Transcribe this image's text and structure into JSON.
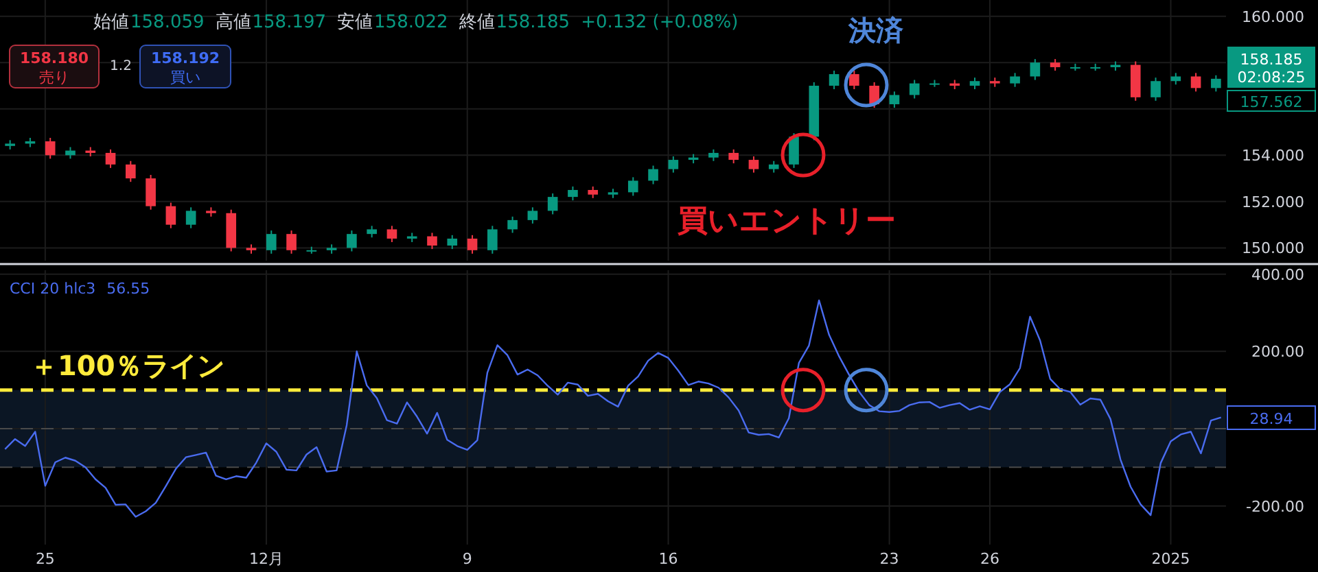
{
  "chart_data": [
    {
      "type": "candlestick",
      "categories": [
        null,
        null,
        null,
        null,
        null,
        null,
        null,
        null,
        null,
        null,
        null,
        null,
        null,
        null,
        null,
        null,
        null,
        null,
        null,
        null,
        null,
        null,
        null,
        null,
        null,
        null,
        null,
        null,
        null,
        null,
        null,
        null,
        null,
        null,
        null,
        null,
        null,
        null,
        null,
        null,
        null,
        null,
        null,
        null,
        null,
        null,
        null,
        null,
        null,
        null,
        null,
        null,
        null,
        null,
        null,
        null,
        null,
        null,
        null,
        null,
        null
      ],
      "ohlc": [
        [
          154.4,
          154.65,
          154.25,
          154.5
        ],
        [
          154.5,
          154.75,
          154.35,
          154.6
        ],
        [
          154.6,
          154.75,
          153.85,
          154.0
        ],
        [
          154.0,
          154.35,
          153.85,
          154.2
        ],
        [
          154.2,
          154.35,
          153.95,
          154.1
        ],
        [
          154.1,
          154.25,
          153.45,
          153.6
        ],
        [
          153.6,
          153.75,
          152.85,
          153.0
        ],
        [
          153.0,
          153.15,
          151.65,
          151.8
        ],
        [
          151.8,
          151.95,
          150.85,
          151.0
        ],
        [
          151.0,
          151.75,
          150.85,
          151.6
        ],
        [
          151.6,
          151.75,
          151.35,
          151.5
        ],
        [
          151.5,
          151.65,
          149.85,
          150.0
        ],
        [
          150.0,
          150.15,
          149.75,
          149.9
        ],
        [
          149.9,
          150.75,
          149.75,
          150.6
        ],
        [
          150.6,
          150.75,
          149.75,
          149.9
        ],
        [
          149.9,
          150.05,
          149.75,
          149.9
        ],
        [
          149.9,
          150.15,
          149.75,
          150.0
        ],
        [
          150.0,
          150.75,
          149.85,
          150.6
        ],
        [
          150.6,
          150.95,
          150.45,
          150.8
        ],
        [
          150.8,
          150.95,
          150.25,
          150.4
        ],
        [
          150.4,
          150.65,
          150.25,
          150.5
        ],
        [
          150.5,
          150.65,
          149.95,
          150.1
        ],
        [
          150.1,
          150.55,
          149.95,
          150.4
        ],
        [
          150.4,
          150.55,
          149.75,
          149.9
        ],
        [
          149.9,
          150.95,
          149.75,
          150.8
        ],
        [
          150.8,
          151.35,
          150.65,
          151.2
        ],
        [
          151.2,
          151.75,
          151.05,
          151.6
        ],
        [
          151.6,
          152.35,
          151.45,
          152.2
        ],
        [
          152.2,
          152.65,
          152.05,
          152.5
        ],
        [
          152.5,
          152.65,
          152.15,
          152.3
        ],
        [
          152.3,
          152.55,
          152.15,
          152.4
        ],
        [
          152.4,
          153.05,
          152.25,
          152.9
        ],
        [
          152.9,
          153.55,
          152.75,
          153.4
        ],
        [
          153.4,
          153.95,
          153.25,
          153.8
        ],
        [
          153.8,
          154.05,
          153.65,
          153.9
        ],
        [
          153.9,
          154.25,
          153.75,
          154.1
        ],
        [
          154.1,
          154.25,
          153.65,
          153.8
        ],
        [
          153.8,
          153.95,
          153.25,
          153.4
        ],
        [
          153.4,
          153.75,
          153.25,
          153.6
        ],
        [
          153.6,
          154.95,
          153.45,
          154.8
        ],
        [
          154.8,
          157.15,
          154.65,
          157.0
        ],
        [
          157.0,
          157.65,
          156.85,
          157.5
        ],
        [
          157.5,
          157.65,
          156.85,
          157.0
        ],
        [
          157.0,
          157.15,
          156.05,
          156.2
        ],
        [
          156.2,
          156.75,
          156.05,
          156.6
        ],
        [
          156.6,
          157.25,
          156.45,
          157.1
        ],
        [
          157.1,
          157.25,
          156.95,
          157.1
        ],
        [
          157.1,
          157.25,
          156.85,
          157.0
        ],
        [
          157.0,
          157.35,
          156.85,
          157.2
        ],
        [
          157.2,
          157.35,
          156.95,
          157.1
        ],
        [
          157.1,
          157.55,
          156.95,
          157.4
        ],
        [
          157.4,
          158.15,
          157.25,
          158.0
        ],
        [
          158.0,
          158.15,
          157.65,
          157.8
        ],
        [
          157.8,
          157.95,
          157.65,
          157.8
        ],
        [
          157.8,
          157.95,
          157.65,
          157.8
        ],
        [
          157.8,
          158.05,
          157.65,
          157.9
        ],
        [
          157.9,
          158.05,
          156.35,
          156.5
        ],
        [
          156.5,
          157.35,
          156.35,
          157.2
        ],
        [
          157.2,
          157.55,
          157.05,
          157.4
        ],
        [
          157.4,
          157.55,
          156.75,
          156.9
        ],
        [
          156.9,
          157.45,
          156.75,
          157.3
        ]
      ],
      "ylim": [
        149.45,
        160.7
      ],
      "yticks": [
        {
          "value": 150,
          "label": "150.000"
        },
        {
          "value": 152,
          "label": "152.000"
        },
        {
          "value": 154,
          "label": "154.000"
        },
        {
          "value": 156,
          "label": null
        },
        {
          "value": 158,
          "label": null
        },
        {
          "value": 160,
          "label": "160.000"
        }
      ],
      "grid": true,
      "annotations": [
        "始値",
        "158.059",
        "高値",
        "158.197",
        "安値",
        "158.022",
        "終値",
        "158.185",
        "+0.132 (+0.08%)",
        "158.180",
        "売り",
        "1.2",
        "158.192",
        "買い",
        "158.185",
        "02:08:25",
        "157.562",
        "買いエントリー",
        "決済"
      ]
    },
    {
      "type": "line",
      "categories": [
        null,
        null,
        null,
        null,
        "25",
        null,
        null,
        null,
        null,
        null,
        null,
        null,
        null,
        null,
        null,
        null,
        null,
        null,
        null,
        null,
        null,
        null,
        null,
        null,
        null,
        null,
        "12月",
        null,
        null,
        null,
        null,
        null,
        null,
        null,
        null,
        null,
        null,
        null,
        null,
        null,
        null,
        null,
        null,
        null,
        null,
        null,
        "9",
        null,
        null,
        null,
        null,
        null,
        null,
        null,
        null,
        null,
        null,
        null,
        null,
        null,
        null,
        null,
        null,
        null,
        null,
        null,
        "16",
        null,
        null,
        null,
        null,
        null,
        null,
        null,
        null,
        null,
        null,
        null,
        null,
        null,
        null,
        null,
        null,
        null,
        null,
        null,
        null,
        null,
        "23",
        null,
        null,
        null,
        null,
        null,
        null,
        null,
        null,
        null,
        "26",
        null,
        null,
        null,
        null,
        null,
        null,
        null,
        null,
        null,
        null,
        null,
        null,
        null,
        null,
        null,
        null,
        null,
        "2025",
        null,
        null,
        null,
        null,
        null
      ],
      "series": [
        {
          "name": "CCI 20 hlc3",
          "color": "#4a6cf0",
          "values": [
            -53,
            -27,
            -45,
            -8,
            -148,
            -87,
            -75,
            -83,
            -100,
            -131,
            -153,
            -197,
            -196,
            -228,
            -214,
            -192,
            -149,
            -104,
            -74,
            -68,
            -62,
            -122,
            -131,
            -123,
            -127,
            -88,
            -38,
            -60,
            -106,
            -108,
            -67,
            -48,
            -111,
            -108,
            9,
            200,
            112,
            79,
            22,
            13,
            68,
            31,
            -13,
            41,
            -29,
            -45,
            -55,
            -30,
            145,
            216,
            190,
            140,
            153,
            138,
            111,
            88,
            119,
            114,
            85,
            90,
            71,
            57,
            111,
            135,
            176,
            196,
            183,
            150,
            113,
            122,
            117,
            106,
            81,
            47,
            -10,
            -16,
            -14,
            -23,
            27,
            170,
            215,
            332,
            243,
            187,
            139,
            95,
            61,
            45,
            43,
            46,
            61,
            68,
            69,
            54,
            61,
            66,
            49,
            58,
            50,
            95,
            115,
            157,
            290,
            228,
            129,
            102,
            95,
            62,
            78,
            75,
            25,
            -80,
            -150,
            -196,
            -224,
            -89,
            -33,
            -15,
            -8,
            -64,
            21,
            29
          ]
        }
      ],
      "ylim": [
        -300,
        410
      ],
      "yticks": [
        {
          "value": 400,
          "label": "400.00"
        },
        {
          "value": 200,
          "label": "200.00"
        },
        {
          "value": 0,
          "label": null
        },
        {
          "value": -200,
          "label": "-200.00"
        }
      ],
      "grid": true,
      "legend": "top left",
      "line_style": "solid",
      "ref_lines": [
        {
          "axis": "y",
          "value": 100,
          "label": "＋100％ライン",
          "color": "#ffeb3b",
          "line_style": "dashed"
        },
        {
          "axis": "y",
          "value": 0,
          "color": "#4a4a4a",
          "line_style": "dashed"
        },
        {
          "axis": "y",
          "value": -100,
          "color": "#4a4a4a",
          "line_style": "dashed"
        }
      ],
      "bands": [
        {
          "axis": "y",
          "from": -100,
          "to": 100,
          "color": "#0b1624"
        }
      ],
      "annotations": [
        "56.55",
        "28.94"
      ]
    }
  ]
}
